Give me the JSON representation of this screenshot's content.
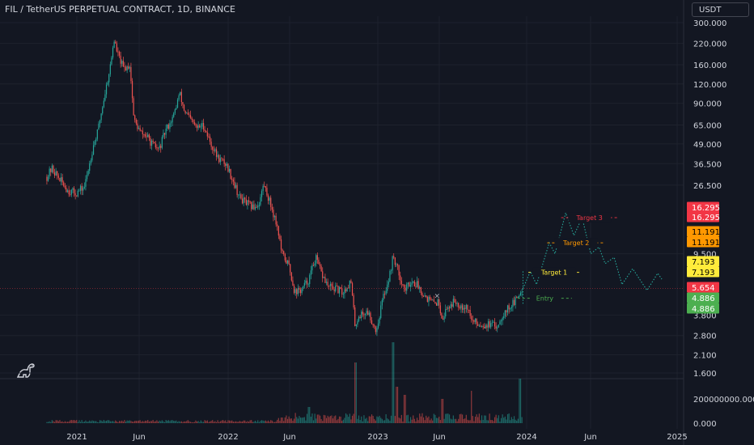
{
  "header": {
    "title": "FIL / TetherUS PERPETUAL CONTRACT, 1D, BINANCE",
    "currency": "USDT"
  },
  "colors": {
    "background": "#131722",
    "up": "#26a69a",
    "down": "#ef5350",
    "forecast": "#26a69a",
    "target3": "#f23645",
    "target2": "#ff9800",
    "target1": "#ffeb3b",
    "current": "#f23645",
    "entry": "#4caf50",
    "text": "#d1d4dc"
  },
  "icons": {
    "logo": "dinosaur-icon"
  },
  "chart_data": {
    "type": "candlestick",
    "scale": "log",
    "price_ticks": [
      "300.000",
      "220.000",
      "160.000",
      "120.000",
      "90.000",
      "65.000",
      "49.000",
      "36.500",
      "26.500",
      "9.500",
      "3.800",
      "2.800",
      "2.100",
      "1.600"
    ],
    "volume_ticks": [
      "200000000.000",
      "0.000"
    ],
    "x_ticks": [
      "2021",
      "Jun",
      "2022",
      "Jun",
      "2023",
      "Jun",
      "2024",
      "Jun",
      "2025"
    ],
    "ylim": [
      1.55,
      320
    ],
    "price_path": [
      [
        "2020-10-20",
        30.0
      ],
      [
        "2020-11-01",
        34.0
      ],
      [
        "2020-11-20",
        29.0
      ],
      [
        "2020-12-10",
        24.5
      ],
      [
        "2020-12-31",
        23.5
      ],
      [
        "2021-01-20",
        26.0
      ],
      [
        "2021-02-10",
        48.0
      ],
      [
        "2021-02-20",
        58.0
      ],
      [
        "2021-03-05",
        88.0
      ],
      [
        "2021-03-25",
        165.0
      ],
      [
        "2021-04-01",
        235.0
      ],
      [
        "2021-04-10",
        190.0
      ],
      [
        "2021-04-25",
        150.0
      ],
      [
        "2021-05-10",
        160.0
      ],
      [
        "2021-05-20",
        70.0
      ],
      [
        "2021-06-05",
        58.0
      ],
      [
        "2021-06-20",
        55.0
      ],
      [
        "2021-07-05",
        48.0
      ],
      [
        "2021-07-20",
        45.0
      ],
      [
        "2021-08-05",
        60.0
      ],
      [
        "2021-08-25",
        75.0
      ],
      [
        "2021-09-08",
        105.0
      ],
      [
        "2021-09-20",
        80.0
      ],
      [
        "2021-10-05",
        70.0
      ],
      [
        "2021-10-20",
        62.0
      ],
      [
        "2021-11-05",
        65.0
      ],
      [
        "2021-11-25",
        48.0
      ],
      [
        "2021-12-10",
        40.0
      ],
      [
        "2021-12-31",
        36.0
      ],
      [
        "2022-01-15",
        29.0
      ],
      [
        "2022-02-01",
        22.0
      ],
      [
        "2022-02-20",
        20.0
      ],
      [
        "2022-03-05",
        19.0
      ],
      [
        "2022-03-20",
        20.0
      ],
      [
        "2022-04-01",
        27.0
      ],
      [
        "2022-04-20",
        19.0
      ],
      [
        "2022-05-05",
        14.0
      ],
      [
        "2022-05-15",
        9.5
      ],
      [
        "2022-06-01",
        8.0
      ],
      [
        "2022-06-15",
        5.4
      ],
      [
        "2022-07-01",
        5.5
      ],
      [
        "2022-07-20",
        6.5
      ],
      [
        "2022-08-05",
        9.0
      ],
      [
        "2022-08-20",
        7.0
      ],
      [
        "2022-09-05",
        5.8
      ],
      [
        "2022-09-25",
        5.6
      ],
      [
        "2022-10-10",
        5.3
      ],
      [
        "2022-10-30",
        6.3
      ],
      [
        "2022-11-09",
        3.3
      ],
      [
        "2022-11-20",
        3.8
      ],
      [
        "2022-12-10",
        4.0
      ],
      [
        "2022-12-31",
        3.0
      ],
      [
        "2023-01-15",
        4.8
      ],
      [
        "2023-02-01",
        6.8
      ],
      [
        "2023-02-10",
        9.2
      ],
      [
        "2023-02-25",
        7.0
      ],
      [
        "2023-03-10",
        5.5
      ],
      [
        "2023-03-25",
        6.3
      ],
      [
        "2023-04-10",
        6.0
      ],
      [
        "2023-04-25",
        5.2
      ],
      [
        "2023-05-15",
        4.6
      ],
      [
        "2023-06-01",
        4.6
      ],
      [
        "2023-06-10",
        3.6
      ],
      [
        "2023-06-20",
        4.2
      ],
      [
        "2023-07-10",
        4.7
      ],
      [
        "2023-07-25",
        4.4
      ],
      [
        "2023-08-10",
        4.3
      ],
      [
        "2023-08-20",
        3.5
      ],
      [
        "2023-09-10",
        3.3
      ],
      [
        "2023-10-01",
        3.3
      ],
      [
        "2023-10-20",
        3.2
      ],
      [
        "2023-11-05",
        3.9
      ],
      [
        "2023-11-20",
        4.3
      ],
      [
        "2023-12-05",
        4.7
      ],
      [
        "2023-12-15",
        5.3
      ],
      [
        "2023-12-23",
        5.65
      ]
    ],
    "forecast_path": [
      [
        "2023-12-23",
        5.654
      ],
      [
        "2024-01-10",
        7.3
      ],
      [
        "2024-01-25",
        6.0
      ],
      [
        "2024-02-25",
        11.2
      ],
      [
        "2024-03-10",
        9.5
      ],
      [
        "2024-04-05",
        17.5
      ],
      [
        "2024-04-25",
        12.5
      ],
      [
        "2024-05-15",
        16.3
      ],
      [
        "2024-06-05",
        9.5
      ],
      [
        "2024-06-25",
        10.5
      ],
      [
        "2024-07-10",
        8.2
      ],
      [
        "2024-08-01",
        9.0
      ],
      [
        "2024-08-20",
        6.0
      ],
      [
        "2024-09-15",
        7.6
      ],
      [
        "2024-10-20",
        5.5
      ],
      [
        "2024-11-15",
        7.1
      ],
      [
        "2024-11-25",
        6.5
      ]
    ],
    "volume_peaks": [
      [
        "2022-11-10",
        75
      ],
      [
        "2023-02-10",
        100
      ],
      [
        "2023-02-20",
        45
      ],
      [
        "2023-03-10",
        35
      ],
      [
        "2022-07-20",
        20
      ],
      [
        "2023-08-20",
        40
      ],
      [
        "2023-12-15",
        55
      ],
      [
        "2023-06-10",
        30
      ]
    ],
    "levels": [
      {
        "name": "Target 3",
        "price": 16.295,
        "label": "16.295",
        "color": "#f23645",
        "start": "2024-03-25",
        "end": "2024-08-10"
      },
      {
        "name": "Target 2",
        "price": 11.191,
        "label": "11.191",
        "color": "#ff9800",
        "start": "2024-02-20",
        "end": "2024-07-10"
      },
      {
        "name": "Target 1",
        "price": 7.193,
        "label": "7.193",
        "color": "#ffeb3b",
        "start": "2024-01-05",
        "end": "2024-05-10"
      },
      {
        "name": "Entry",
        "price": 4.886,
        "label": "4.886",
        "color": "#4caf50",
        "start": "2023-12-10",
        "end": "2024-04-20"
      }
    ],
    "current_price": {
      "label": "5.654",
      "price": 5.654
    },
    "markers": [
      {
        "date": "2023-05-28",
        "label": "×"
      }
    ]
  }
}
